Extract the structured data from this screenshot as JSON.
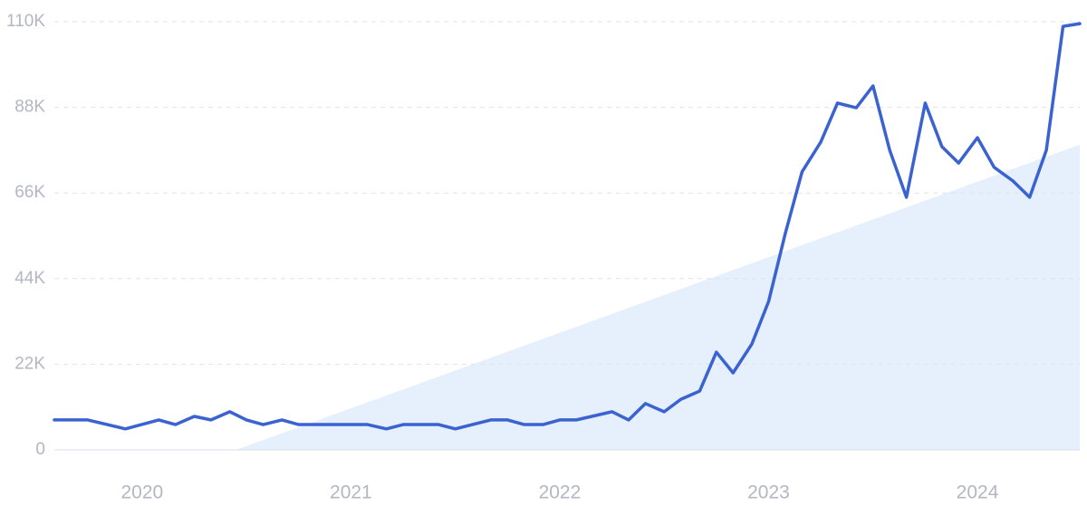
{
  "chart_data": {
    "type": "line",
    "x": [
      2019.58,
      2019.74,
      2019.92,
      2020.08,
      2020.16,
      2020.25,
      2020.33,
      2020.42,
      2020.5,
      2020.58,
      2020.67,
      2020.75,
      2020.83,
      2021.08,
      2021.17,
      2021.25,
      2021.42,
      2021.5,
      2021.67,
      2021.75,
      2021.83,
      2021.92,
      2022.0,
      2022.08,
      2022.25,
      2022.33,
      2022.41,
      2022.5,
      2022.58,
      2022.67,
      2022.75,
      2022.83,
      2022.92,
      2023.0,
      2023.08,
      2023.16,
      2023.25,
      2023.33,
      2023.42,
      2023.5,
      2023.58,
      2023.66,
      2023.75,
      2023.83,
      2023.91,
      2024.0,
      2024.08,
      2024.17,
      2024.25,
      2024.33,
      2024.41,
      2024.49
    ],
    "values": [
      7700,
      7700,
      5400,
      7700,
      6500,
      8600,
      7700,
      9800,
      7700,
      6500,
      7700,
      6500,
      6500,
      6500,
      5400,
      6500,
      6500,
      5400,
      7700,
      7700,
      6500,
      6500,
      7700,
      7700,
      9800,
      7700,
      11900,
      9800,
      13000,
      15100,
      25100,
      19800,
      27200,
      38100,
      55600,
      71400,
      79100,
      89100,
      87900,
      93500,
      77000,
      64900,
      89100,
      77900,
      73700,
      80200,
      72600,
      69100,
      64900,
      77000,
      108800,
      109500
    ],
    "color": "#3a62d0",
    "trend": {
      "x": [
        2020.45,
        2024.49
      ],
      "values": [
        0,
        78400
      ],
      "color": "#dde9fb"
    },
    "xlim": [
      2019.58,
      2024.49
    ],
    "xticks": [
      2020,
      2021,
      2022,
      2023,
      2024
    ],
    "ylim": [
      0,
      110000
    ],
    "yticks": [
      0,
      {
        "value": 22000,
        "label": "22K"
      },
      {
        "value": 44000,
        "label": "44K"
      },
      {
        "value": 66000,
        "label": "66K"
      },
      {
        "value": 88000,
        "label": "88K"
      },
      {
        "value": 110000,
        "label": "110K"
      }
    ],
    "grid": true
  }
}
